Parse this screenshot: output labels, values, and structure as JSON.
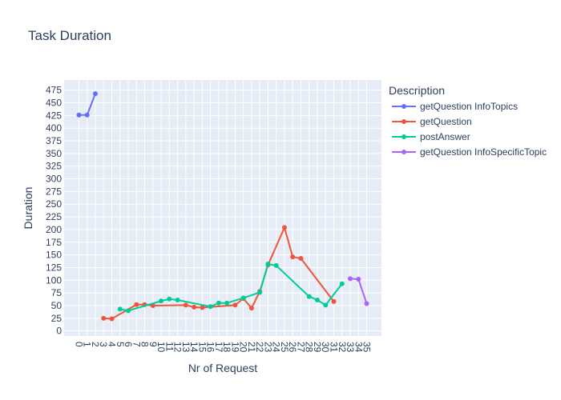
{
  "chart_data": {
    "type": "line",
    "title": "Task Duration",
    "xlabel": "Nr of Request",
    "ylabel": "Duration",
    "xlim": [
      -1.8,
      36.8
    ],
    "ylim": [
      -10,
      495
    ],
    "x_ticks": [
      0,
      1,
      2,
      3,
      4,
      5,
      6,
      7,
      8,
      9,
      10,
      11,
      12,
      13,
      14,
      15,
      16,
      17,
      18,
      19,
      20,
      21,
      22,
      23,
      24,
      25,
      26,
      27,
      28,
      29,
      30,
      31,
      32,
      33,
      34,
      35
    ],
    "y_ticks": [
      0,
      25,
      50,
      75,
      100,
      125,
      150,
      175,
      200,
      225,
      250,
      275,
      300,
      325,
      350,
      375,
      400,
      425,
      450,
      475
    ],
    "grid": true,
    "legend": {
      "title": "Description",
      "placement": "right"
    },
    "series": [
      {
        "name": "getQuestion InfoTopics",
        "color": "#636efa",
        "points": [
          [
            0,
            426
          ],
          [
            1,
            426
          ],
          [
            2,
            468
          ]
        ]
      },
      {
        "name": "getQuestion",
        "color": "#ef553b",
        "points": [
          [
            3,
            25
          ],
          [
            4,
            24
          ],
          [
            7,
            52
          ],
          [
            8,
            52
          ],
          [
            9,
            50
          ],
          [
            13,
            51
          ],
          [
            14,
            47
          ],
          [
            15,
            46
          ],
          [
            19,
            51
          ],
          [
            20,
            64
          ],
          [
            21,
            45
          ],
          [
            22,
            78
          ],
          [
            23,
            130
          ],
          [
            25,
            204
          ],
          [
            26,
            146
          ],
          [
            27,
            143
          ],
          [
            31,
            58
          ]
        ]
      },
      {
        "name": "postAnswer",
        "color": "#00cc96",
        "points": [
          [
            5,
            43
          ],
          [
            6,
            40
          ],
          [
            10,
            59
          ],
          [
            11,
            63
          ],
          [
            12,
            61
          ],
          [
            16,
            48
          ],
          [
            17,
            55
          ],
          [
            18,
            55
          ],
          [
            20,
            65
          ],
          [
            22,
            76
          ],
          [
            23,
            132
          ],
          [
            24,
            129
          ],
          [
            28,
            68
          ],
          [
            29,
            61
          ],
          [
            30,
            51
          ],
          [
            32,
            93
          ]
        ]
      },
      {
        "name": "getQuestion InfoSpecificTopic",
        "color": "#ab63fa",
        "points": [
          [
            33,
            103
          ],
          [
            34,
            102
          ],
          [
            35,
            54
          ]
        ]
      }
    ]
  }
}
